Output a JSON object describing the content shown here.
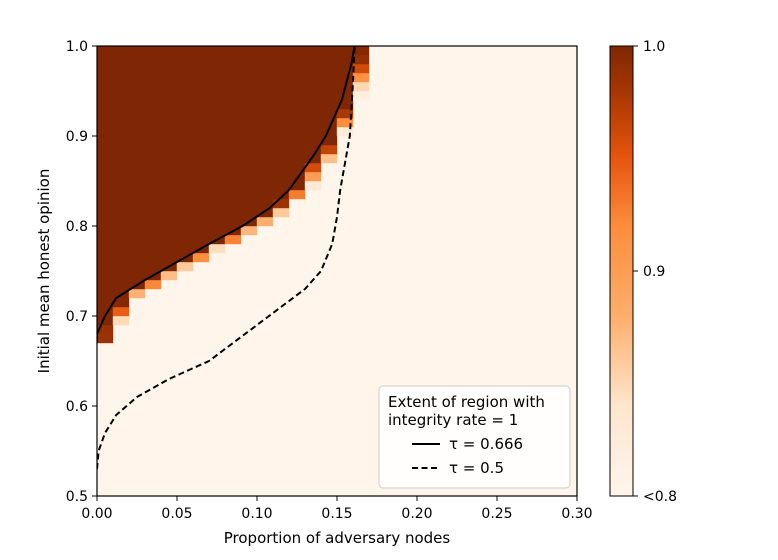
{
  "chart_data": {
    "type": "heatmap",
    "title": "",
    "xlabel": "Proportion of adversary nodes",
    "ylabel": "Initial mean honest opinion",
    "xlim": [
      0.0,
      0.3
    ],
    "ylim": [
      0.5,
      1.0
    ],
    "xticks": [
      "0.00",
      "0.05",
      "0.10",
      "0.15",
      "0.20",
      "0.25",
      "0.30"
    ],
    "yticks": [
      "0.5",
      "0.6",
      "0.7",
      "0.8",
      "0.9",
      "1.0"
    ],
    "grid_step_x": 0.01,
    "grid_step_y": 0.01,
    "colorbar": {
      "min_label": "<0.8",
      "max_label": "1.0",
      "ticks": [
        "<0.8",
        "0.9",
        "1.0"
      ],
      "range": [
        0.8,
        1.0
      ],
      "colors": [
        "#fff5eb",
        "#fdd0a2",
        "#fd8d3c",
        "#e6550d",
        "#a63603",
        "#7f2704"
      ]
    },
    "heatmap_boundary": {
      "description": "integrity rate 1.0 for x below boundary; transition ~4 cells wide; below 0.8 elsewhere",
      "y": [
        0.67,
        0.68,
        0.7,
        0.72,
        0.74,
        0.76,
        0.78,
        0.8,
        0.82,
        0.84,
        0.86,
        0.88,
        0.9,
        0.92,
        0.94,
        0.96,
        0.98,
        1.0
      ],
      "x": [
        0.0,
        0.0,
        0.005,
        0.012,
        0.03,
        0.05,
        0.07,
        0.091,
        0.108,
        0.12,
        0.128,
        0.136,
        0.143,
        0.148,
        0.153,
        0.156,
        0.159,
        0.161
      ]
    },
    "series": [
      {
        "name": "τ = 0.666",
        "style": "solid",
        "x": [
          0.0,
          0.0,
          0.005,
          0.012,
          0.03,
          0.05,
          0.07,
          0.091,
          0.108,
          0.12,
          0.128,
          0.136,
          0.143,
          0.148,
          0.153,
          0.156,
          0.159,
          0.161
        ],
        "y": [
          0.67,
          0.68,
          0.7,
          0.72,
          0.74,
          0.76,
          0.78,
          0.8,
          0.82,
          0.84,
          0.86,
          0.88,
          0.9,
          0.92,
          0.94,
          0.96,
          0.98,
          1.0
        ]
      },
      {
        "name": "τ = 0.5",
        "style": "dashed",
        "x": [
          0.0,
          0.001,
          0.005,
          0.012,
          0.025,
          0.045,
          0.07,
          0.085,
          0.1,
          0.115,
          0.13,
          0.14,
          0.147,
          0.15,
          0.152,
          0.155,
          0.158,
          0.159,
          0.16,
          0.161
        ],
        "y": [
          0.53,
          0.55,
          0.57,
          0.59,
          0.61,
          0.63,
          0.65,
          0.67,
          0.69,
          0.71,
          0.73,
          0.75,
          0.78,
          0.81,
          0.84,
          0.87,
          0.9,
          0.93,
          0.96,
          1.0
        ]
      }
    ],
    "legend": {
      "position": "bottom-right",
      "title_lines": [
        "Extent of region with",
        "integrity rate = 1"
      ],
      "entries": [
        "τ = 0.666",
        "τ = 0.5"
      ]
    }
  }
}
